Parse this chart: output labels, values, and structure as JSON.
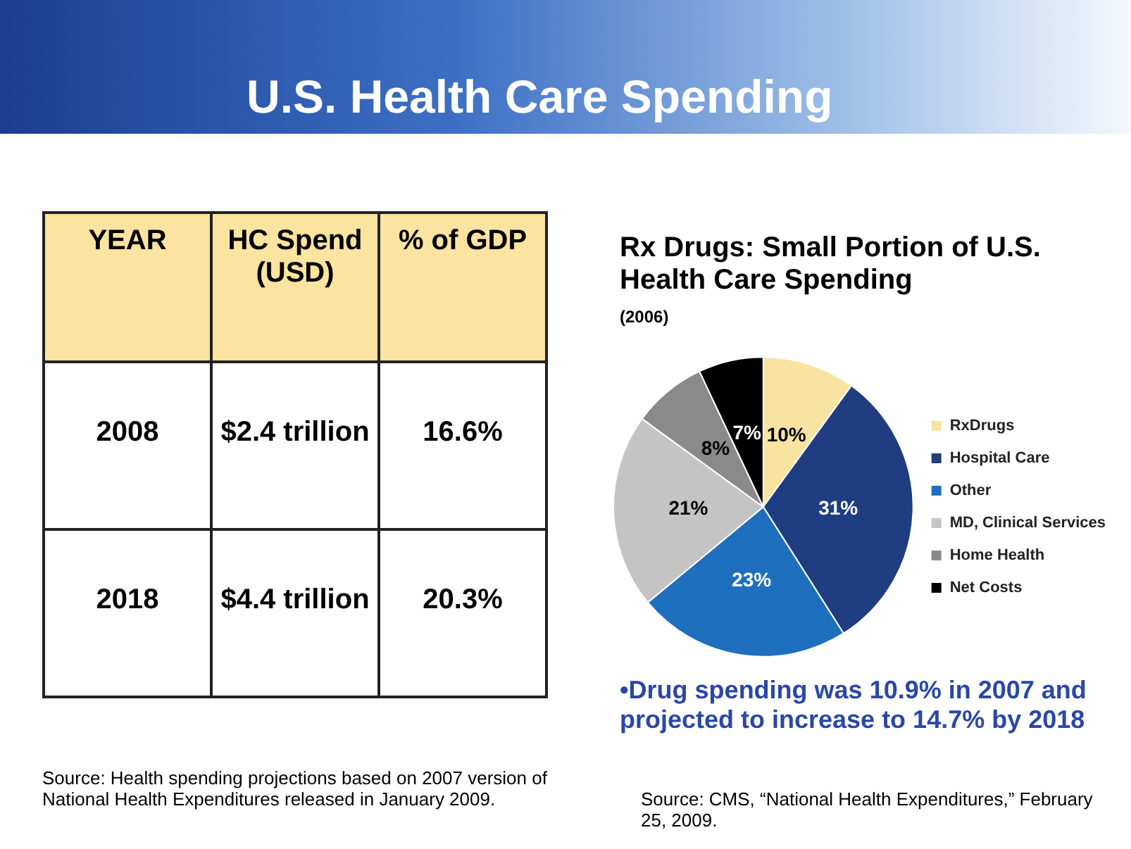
{
  "chart_data": [
    {
      "type": "other",
      "title": "U.S. Health Care Spending",
      "annotations": [
        "YEAR",
        "HC Spend (USD)",
        "% of GDP",
        "2008",
        "$2.4 trillion",
        "16.6%",
        "2018",
        "$4.4 trillion",
        "20.3%",
        "Source:  Health spending projections based on 2007 version of National Health Expenditures released in January 2009."
      ]
    },
    {
      "type": "pie",
      "title": "Rx Drugs: Small Portion of U.S. Health Care Spending",
      "subtitle": "(2006)",
      "categories": [
        "RxDrugs",
        "Hospital Care",
        "Other",
        "MD, Clinical Services",
        "Home Health",
        "Net Costs"
      ],
      "values": [
        10,
        31,
        23,
        21,
        8,
        7
      ],
      "value_labels": [
        "10%",
        "31%",
        "23%",
        "21%",
        "8%",
        "7%"
      ],
      "colors": [
        "#f8e4a0",
        "#1f3d80",
        "#1f6fbf",
        "#c4c4c4",
        "#8a8a8a",
        "#000000"
      ],
      "legend": "right",
      "annotations": [
        "•Drug spending was 10.9% in 2007 and projected to increase to 14.7% by 2018",
        "Source: CMS, “National Health Expenditures,” February 25, 2009."
      ]
    }
  ]
}
